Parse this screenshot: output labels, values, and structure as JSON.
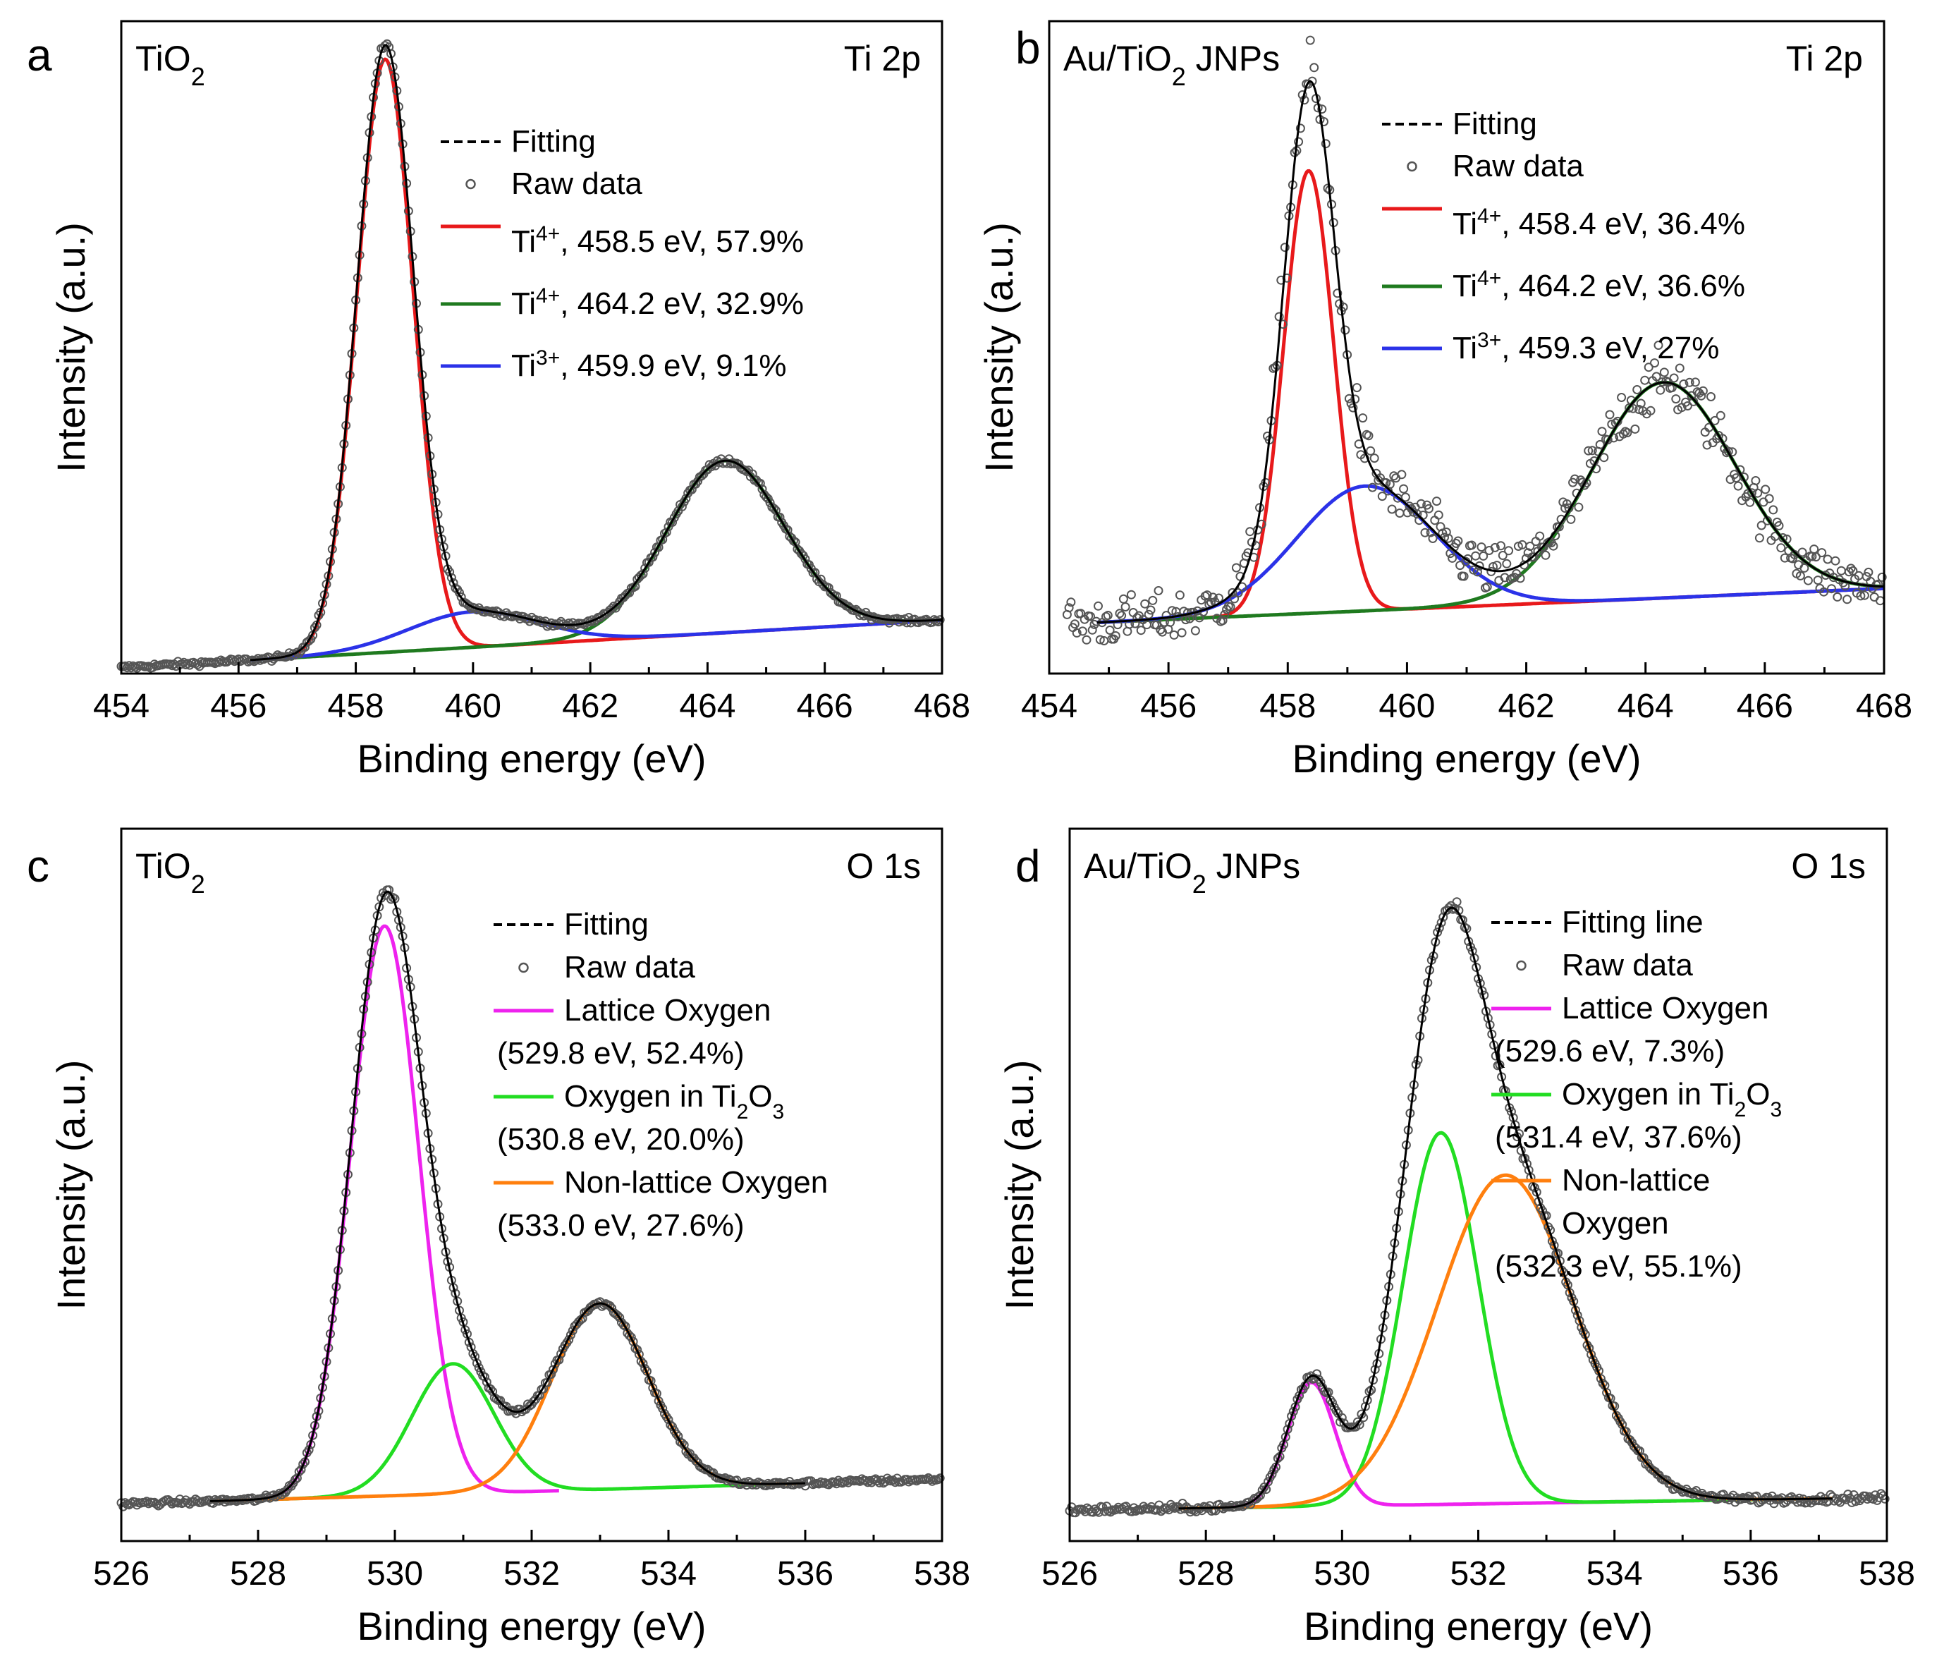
{
  "chart_data": [
    {
      "panel": "a",
      "type": "line",
      "sample_label": {
        "main": "TiO",
        "sub": "2",
        "rest": ""
      },
      "region_label": "Ti 2p",
      "xlabel": "Binding energy (eV)",
      "ylabel": "Intensity (a.u.)",
      "xlim": [
        454,
        468
      ],
      "ylim": [
        0,
        1.1
      ],
      "xticks": [
        "454",
        "456",
        "458",
        "460",
        "462",
        "464",
        "466",
        "468"
      ],
      "legend": [
        {
          "kind": "fit",
          "text": "Fitting"
        },
        {
          "kind": "raw",
          "text": "Raw data"
        },
        {
          "kind": "peak",
          "color": "#e8191b",
          "ion": "Ti",
          "charge": "4+",
          "detail": ", 458.5 eV, 57.9%"
        },
        {
          "kind": "peak",
          "color": "#1f7a1f",
          "ion": "Ti",
          "charge": "4+",
          "detail": ", 464.2 eV, 32.9%"
        },
        {
          "kind": "peak",
          "color": "#2b32e8",
          "ion": "Ti",
          "charge": "3+",
          "detail": ", 459.9 eV, 9.1%"
        }
      ],
      "baseline": {
        "x0": 454,
        "y0": 0.01,
        "x1": 468,
        "y1": 0.09
      },
      "components": [
        {
          "color": "#e8191b",
          "center": 458.5,
          "height": 1.0,
          "sigma": 0.48,
          "x_from": 456.2,
          "x_to": 468
        },
        {
          "color": "#1f7a1f",
          "center": 464.3,
          "height": 0.29,
          "sigma": 1.0,
          "x_from": 456.2,
          "x_to": 468
        },
        {
          "color": "#2b32e8",
          "center": 460.0,
          "height": 0.06,
          "sigma": 1.1,
          "x_from": 456.2,
          "x_to": 468
        }
      ],
      "raw_noise": 0.004,
      "raw_range": [
        454,
        468
      ]
    },
    {
      "panel": "b",
      "type": "line",
      "sample_label": {
        "main": "Au/TiO",
        "sub": "2",
        "rest": " JNPs"
      },
      "region_label": "Ti 2p",
      "xlabel": "Binding energy (eV)",
      "ylabel": "Intensity (a.u.)",
      "xlim": [
        454,
        468
      ],
      "ylim": [
        -0.05,
        1.1
      ],
      "xticks": [
        "454",
        "456",
        "458",
        "460",
        "462",
        "464",
        "466",
        "468"
      ],
      "legend": [
        {
          "kind": "fit",
          "text": "Fitting"
        },
        {
          "kind": "raw",
          "text": "Raw data"
        },
        {
          "kind": "peak",
          "color": "#e8191b",
          "ion": "Ti",
          "charge": "4+",
          "detail": ", 458.4 eV, 36.4%"
        },
        {
          "kind": "peak",
          "color": "#1f7a1f",
          "ion": "Ti",
          "charge": "4+",
          "detail": ", 464.2 eV, 36.6%"
        },
        {
          "kind": "peak",
          "color": "#2b32e8",
          "ion": "Ti",
          "charge": "3+",
          "detail": ", 459.3 eV, 27%"
        }
      ],
      "baseline": {
        "x0": 454.8,
        "y0": 0.04,
        "x1": 468,
        "y1": 0.1
      },
      "components": [
        {
          "color": "#e8191b",
          "center": 458.35,
          "height": 0.78,
          "sigma": 0.42,
          "x_from": 454.8,
          "x_to": 468
        },
        {
          "color": "#1f7a1f",
          "center": 464.3,
          "height": 0.38,
          "sigma": 1.2,
          "x_from": 454.8,
          "x_to": 468
        },
        {
          "color": "#2b32e8",
          "center": 459.3,
          "height": 0.22,
          "sigma": 1.15,
          "x_from": 454.8,
          "x_to": 468
        }
      ],
      "raw_noise": 0.04,
      "raw_range": [
        454.3,
        468
      ]
    },
    {
      "panel": "c",
      "type": "line",
      "sample_label": {
        "main": "TiO",
        "sub": "2",
        "rest": ""
      },
      "region_label": "O 1s",
      "xlabel": "Binding energy (eV)",
      "ylabel": "Intensity (a.u.)",
      "xlim": [
        526,
        538
      ],
      "ylim": [
        -0.05,
        1.1
      ],
      "xticks": [
        "526",
        "528",
        "530",
        "532",
        "534",
        "536",
        "538"
      ],
      "legend": [
        {
          "kind": "fit",
          "text": "Fitting"
        },
        {
          "kind": "raw",
          "text": "Raw data"
        },
        {
          "kind": "peak",
          "color": "#ee22ee",
          "name": "Lattice Oxygen",
          "detail": "(529.8 eV, 52.4%)"
        },
        {
          "kind": "peak",
          "color": "#22dd22",
          "name_pre": "Oxygen in Ti",
          "sub1": "2",
          "name_mid": "O",
          "sub2": "3",
          "detail": "(530.8 eV, 20.0%)"
        },
        {
          "kind": "peak",
          "color": "#ff7f0e",
          "name": "Non-lattice Oxygen",
          "detail": "(533.0 eV, 27.6%)"
        }
      ],
      "baseline": {
        "x0": 526,
        "y0": 0.01,
        "x1": 538,
        "y1": 0.05
      },
      "components": [
        {
          "color": "#ee22ee",
          "center": 529.85,
          "height": 0.92,
          "sigma": 0.5,
          "x_from": 527.3,
          "x_to": 532.4
        },
        {
          "color": "#22dd22",
          "center": 530.85,
          "height": 0.21,
          "sigma": 0.6,
          "x_from": 527.3,
          "x_to": 536
        },
        {
          "color": "#ff7f0e",
          "center": 533.0,
          "height": 0.3,
          "sigma": 0.7,
          "x_from": 527.3,
          "x_to": 536
        }
      ],
      "raw_noise": 0.004,
      "raw_range": [
        526,
        538
      ]
    },
    {
      "panel": "d",
      "type": "line",
      "sample_label": {
        "main": "Au/TiO",
        "sub": "2",
        "rest": " JNPs"
      },
      "region_label": "O 1s",
      "xlabel": "Binding energy (eV)",
      "ylabel": "Intensity (a.u.)",
      "xlim": [
        526,
        538
      ],
      "ylim": [
        -0.05,
        1.1
      ],
      "xticks": [
        "526",
        "528",
        "530",
        "532",
        "534",
        "536",
        "538"
      ],
      "legend": [
        {
          "kind": "fit",
          "text": "Fitting line"
        },
        {
          "kind": "raw",
          "text": "Raw data"
        },
        {
          "kind": "peak",
          "color": "#ee22ee",
          "name": "Lattice Oxygen",
          "detail": "(529.6 eV, 7.3%)"
        },
        {
          "kind": "peak",
          "color": "#22dd22",
          "name_pre": "Oxygen in Ti",
          "sub1": "2",
          "name_mid": "O",
          "sub2": "3",
          "detail": "(531.4 eV, 37.6%)"
        },
        {
          "kind": "peak",
          "color": "#ff7f0e",
          "name": "Non-lattice",
          "name2": "Oxygen",
          "detail": "(532.3 eV, 55.1%)"
        }
      ],
      "baseline": {
        "x0": 526,
        "y0": 0.0,
        "x1": 538,
        "y1": 0.02
      },
      "components": [
        {
          "color": "#ee22ee",
          "center": 529.55,
          "height": 0.2,
          "sigma": 0.35,
          "x_from": 527.6,
          "x_to": 537.2
        },
        {
          "color": "#22dd22",
          "center": 531.45,
          "height": 0.6,
          "sigma": 0.55,
          "x_from": 527.6,
          "x_to": 537.2
        },
        {
          "color": "#ff7f0e",
          "center": 532.4,
          "height": 0.53,
          "sigma": 1.0,
          "x_from": 527.6,
          "x_to": 537.2
        }
      ],
      "raw_noise": 0.006,
      "raw_range": [
        526,
        538
      ]
    }
  ]
}
